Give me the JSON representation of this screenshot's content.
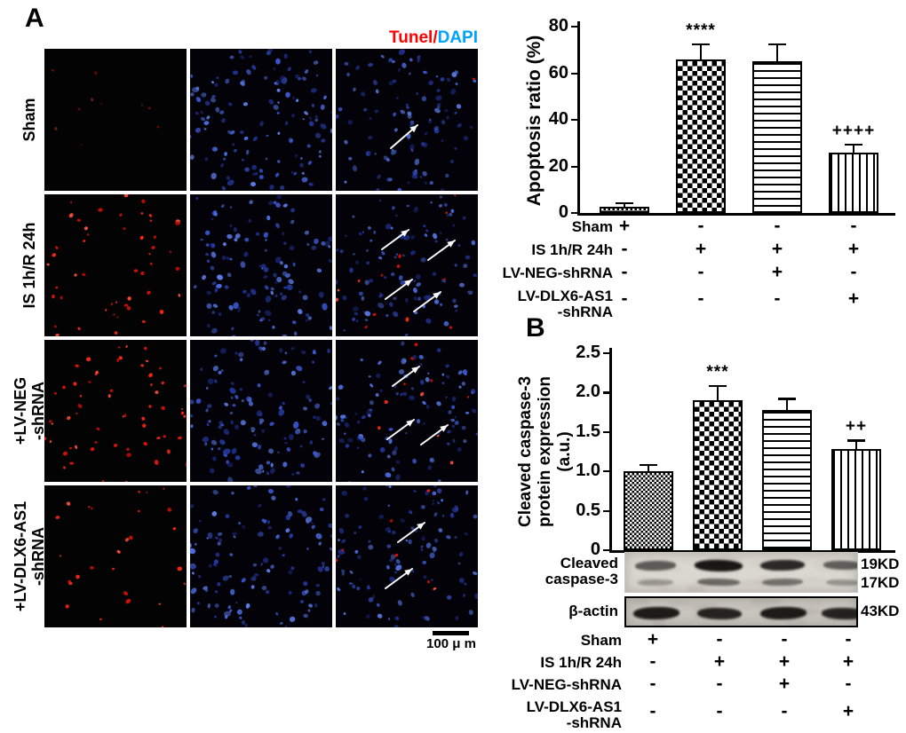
{
  "panel_a": {
    "label": "A",
    "merge_header": {
      "tunel": "Tunel",
      "slash": "/",
      "dapi": "DAPI"
    },
    "row_labels": [
      [
        "Sham"
      ],
      [
        "IS 1h/R 24h"
      ],
      [
        "+LV-NEG",
        "-shRNA"
      ],
      [
        "+LV-DLX6-AS1",
        "-shRNA"
      ]
    ],
    "scale_bar_text": "100 μ m"
  },
  "panel_b": {
    "label": "B"
  },
  "conditions": {
    "row_labels": [
      [
        "Sham"
      ],
      [
        "IS 1h/R 24h"
      ],
      [
        "LV-NEG-shRNA"
      ],
      [
        "LV-DLX6-AS1",
        "-shRNA"
      ]
    ],
    "signs": [
      [
        "+",
        "-",
        "-",
        "-"
      ],
      [
        "-",
        "+",
        "+",
        "+"
      ],
      [
        "-",
        "-",
        "+",
        "-"
      ],
      [
        "-",
        "-",
        "-",
        "+"
      ]
    ]
  },
  "chart_data": [
    {
      "type": "bar",
      "ylabel": "Apoptosis ratio (%)",
      "ylim": [
        0,
        80
      ],
      "yticks": [
        "0",
        "20",
        "40",
        "60",
        "80"
      ],
      "categories": [
        "Sham",
        "IS 1h/R 24h",
        "LV-NEG-shRNA",
        "LV-DLX6-AS1-shRNA"
      ],
      "values": [
        2.5,
        66,
        65,
        26
      ],
      "errors": [
        1.5,
        6,
        7,
        3
      ],
      "annotations": [
        "",
        "****",
        "",
        "++++"
      ],
      "bar_patterns": [
        "fine-checker",
        "checkerboard",
        "horizontal-stripes",
        "vertical-stripes"
      ],
      "grid": false,
      "legend": "none"
    },
    {
      "type": "bar",
      "ylabel_lines": [
        "Cleaved caspase-3",
        "protein expression",
        "(a.u.)"
      ],
      "ylim": [
        0,
        2.5
      ],
      "yticks": [
        "0",
        "0.5",
        "1.0",
        "1.5",
        "2.0",
        "2.5"
      ],
      "categories": [
        "Sham",
        "IS 1h/R 24h",
        "LV-NEG-shRNA",
        "LV-DLX6-AS1-shRNA"
      ],
      "values": [
        1.0,
        1.9,
        1.78,
        1.28
      ],
      "errors": [
        0.07,
        0.17,
        0.13,
        0.1
      ],
      "annotations": [
        "",
        "***",
        "",
        "++"
      ],
      "bar_patterns": [
        "fine-checker",
        "checkerboard",
        "horizontal-stripes",
        "vertical-stripes"
      ],
      "grid": false,
      "legend": "none"
    }
  ],
  "blots": {
    "rows": [
      {
        "label_lines": [
          "Cleaved",
          "caspase-3"
        ],
        "kd_labels": [
          "19KD",
          "17KD"
        ]
      },
      {
        "label_lines": [
          "β-actin"
        ],
        "kd_labels": [
          "43KD"
        ]
      }
    ]
  },
  "colors": {
    "tunel_red": "#ff0000",
    "dapi_blue": "#00a2ff",
    "axis_black": "#000000"
  }
}
